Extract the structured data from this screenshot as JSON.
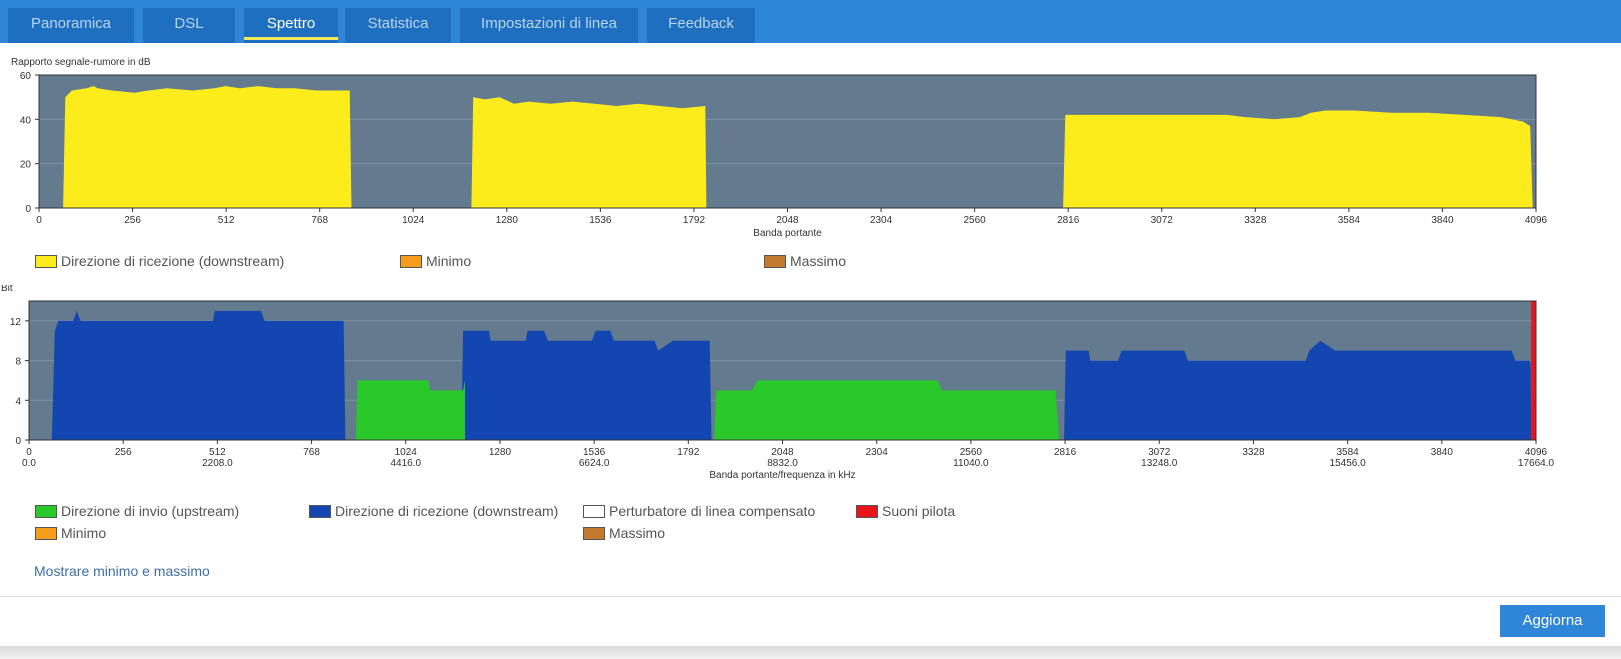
{
  "tabs": [
    {
      "label": "Panoramica",
      "active": false
    },
    {
      "label": "DSL",
      "active": false
    },
    {
      "label": "Spettro",
      "active": true
    },
    {
      "label": "Statistica",
      "active": false
    },
    {
      "label": "Impostazioni di linea",
      "active": false
    },
    {
      "label": "Feedback",
      "active": false
    }
  ],
  "colors": {
    "plot_background": "#637a8f",
    "tab_bar": "#2f86d8",
    "tab": "#1f6fc0",
    "snr_fill": "#fcec1c",
    "downstream_bits": "#1346b0",
    "upstream_bits": "#28c928",
    "pilot": "#e8141c",
    "minimum": "#f49e1c",
    "maximum": "#c47a2e",
    "link": "#3f6ea5",
    "button": "#2f86d8"
  },
  "chart_data": [
    {
      "type": "area",
      "ylabel": "Rapporto segnale-rumore in dB",
      "xlabel": "Banda portante",
      "xlim": [
        0,
        4096
      ],
      "ylim": [
        0,
        60
      ],
      "x_ticks": [
        0,
        256,
        512,
        768,
        1024,
        1280,
        1536,
        1792,
        2048,
        2304,
        2560,
        2816,
        3072,
        3328,
        3584,
        3840,
        4096
      ],
      "y_ticks": [
        0,
        20,
        40,
        60
      ],
      "grid": true,
      "legend": [
        {
          "label": "Direzione di ricezione (downstream)",
          "color": "#fcec1c"
        },
        {
          "label": "Minimo",
          "color": "#f49e1c"
        },
        {
          "label": "Massimo",
          "color": "#c47a2e"
        }
      ],
      "series": [
        {
          "name": "Direzione di ricezione (downstream)",
          "segments": [
            [
              [
                66,
                0
              ],
              [
                72,
                50
              ],
              [
                90,
                53
              ],
              [
                130,
                54
              ],
              [
                150,
                55
              ],
              [
                160,
                54
              ],
              [
                200,
                53
              ],
              [
                260,
                52
              ],
              [
                300,
                53
              ],
              [
                350,
                54
              ],
              [
                420,
                53
              ],
              [
                480,
                54
              ],
              [
                510,
                55
              ],
              [
                550,
                54
              ],
              [
                600,
                55
              ],
              [
                650,
                54
              ],
              [
                700,
                54
              ],
              [
                760,
                53
              ],
              [
                850,
                53
              ],
              [
                855,
                0
              ]
            ],
            [
              [
                1183,
                0
              ],
              [
                1188,
                50
              ],
              [
                1220,
                49
              ],
              [
                1260,
                50
              ],
              [
                1300,
                47
              ],
              [
                1340,
                48
              ],
              [
                1400,
                47
              ],
              [
                1460,
                48
              ],
              [
                1520,
                47
              ],
              [
                1580,
                46
              ],
              [
                1640,
                47
              ],
              [
                1700,
                46
              ],
              [
                1760,
                45
              ],
              [
                1823,
                46
              ],
              [
                1826,
                0
              ]
            ],
            [
              [
                2802,
                0
              ],
              [
                2808,
                42
              ],
              [
                3250,
                42
              ],
              [
                3300,
                41
              ],
              [
                3380,
                40
              ],
              [
                3450,
                41
              ],
              [
                3480,
                43
              ],
              [
                3520,
                44
              ],
              [
                3600,
                44
              ],
              [
                3700,
                43
              ],
              [
                3800,
                43
              ],
              [
                3900,
                42
              ],
              [
                4000,
                41
              ],
              [
                4060,
                39
              ],
              [
                4080,
                37
              ],
              [
                4087,
                0
              ]
            ]
          ]
        }
      ]
    },
    {
      "type": "area",
      "ylabel": "Bit",
      "xlabel": "Banda portante/frequenza in kHz",
      "xlim": [
        0,
        4096
      ],
      "ylim": [
        0,
        14
      ],
      "x_ticks": [
        0,
        256,
        512,
        768,
        1024,
        1280,
        1536,
        1792,
        2048,
        2304,
        2560,
        2816,
        3072,
        3328,
        3584,
        3840,
        4096
      ],
      "x_freq_labels": [
        "0.0",
        "2208.0",
        "4416.0",
        "6624.0",
        "8832.0",
        "11040.0",
        "13248.0",
        "15456.0",
        "17664.0"
      ],
      "y_ticks": [
        0,
        4,
        8,
        12
      ],
      "grid": true,
      "legend": [
        {
          "label": "Direzione di invio (upstream)",
          "color": "#28c928"
        },
        {
          "label": "Direzione di ricezione (downstream)",
          "color": "#1346b0"
        },
        {
          "label": "Perturbatore di linea compensato",
          "color": "#ffffff"
        },
        {
          "label": "Suoni pilota",
          "color": "#e8141c"
        },
        {
          "label": "Minimo",
          "color": "#f49e1c"
        },
        {
          "label": "Massimo",
          "color": "#c47a2e"
        }
      ],
      "series": [
        {
          "name": "Direzione di ricezione (downstream)",
          "segments": [
            [
              [
                62,
                0
              ],
              [
                70,
                11
              ],
              [
                80,
                12
              ],
              [
                120,
                12
              ],
              [
                130,
                13
              ],
              [
                140,
                12
              ],
              [
                500,
                12
              ],
              [
                505,
                13
              ],
              [
                630,
                13
              ],
              [
                640,
                12
              ],
              [
                855,
                12
              ],
              [
                860,
                0
              ]
            ],
            [
              [
                1175,
                0
              ],
              [
                1180,
                11
              ],
              [
                1250,
                11
              ],
              [
                1255,
                10
              ],
              [
                1350,
                10
              ],
              [
                1355,
                11
              ],
              [
                1400,
                11
              ],
              [
                1410,
                10
              ],
              [
                1530,
                10
              ],
              [
                1540,
                11
              ],
              [
                1580,
                11
              ],
              [
                1590,
                10
              ],
              [
                1700,
                10
              ],
              [
                1710,
                9
              ],
              [
                1750,
                10
              ],
              [
                1850,
                10
              ],
              [
                1855,
                0
              ]
            ],
            [
              [
                2813,
                0
              ],
              [
                2818,
                9
              ],
              [
                2880,
                9
              ],
              [
                2885,
                8
              ],
              [
                2960,
                8
              ],
              [
                2970,
                9
              ],
              [
                3140,
                9
              ],
              [
                3150,
                8
              ],
              [
                3470,
                8
              ],
              [
                3480,
                9
              ],
              [
                3510,
                10
              ],
              [
                3550,
                9
              ],
              [
                4030,
                9
              ],
              [
                4040,
                8
              ],
              [
                4080,
                8
              ],
              [
                4082,
                7
              ],
              [
                4083,
                0
              ]
            ]
          ]
        },
        {
          "name": "Direzione di invio (upstream)",
          "segments": [
            [
              [
                888,
                0
              ],
              [
                893,
                6
              ],
              [
                1085,
                6
              ],
              [
                1090,
                5
              ],
              [
                1180,
                5
              ],
              [
                1185,
                6
              ],
              [
                1185,
                0
              ]
            ],
            [
              [
                1862,
                0
              ],
              [
                1868,
                5
              ],
              [
                1965,
                5
              ],
              [
                1980,
                6
              ],
              [
                2470,
                6
              ],
              [
                2480,
                5
              ],
              [
                2790,
                5
              ],
              [
                2800,
                0
              ]
            ]
          ]
        },
        {
          "name": "Suoni pilota",
          "segments": [
            [
              [
                4083,
                0
              ],
              [
                4083,
                14
              ],
              [
                4096,
                14
              ],
              [
                4096,
                0
              ]
            ]
          ]
        }
      ]
    }
  ],
  "footer": {
    "link_label": "Mostrare minimo e massimo",
    "refresh_label": "Aggiorna"
  }
}
